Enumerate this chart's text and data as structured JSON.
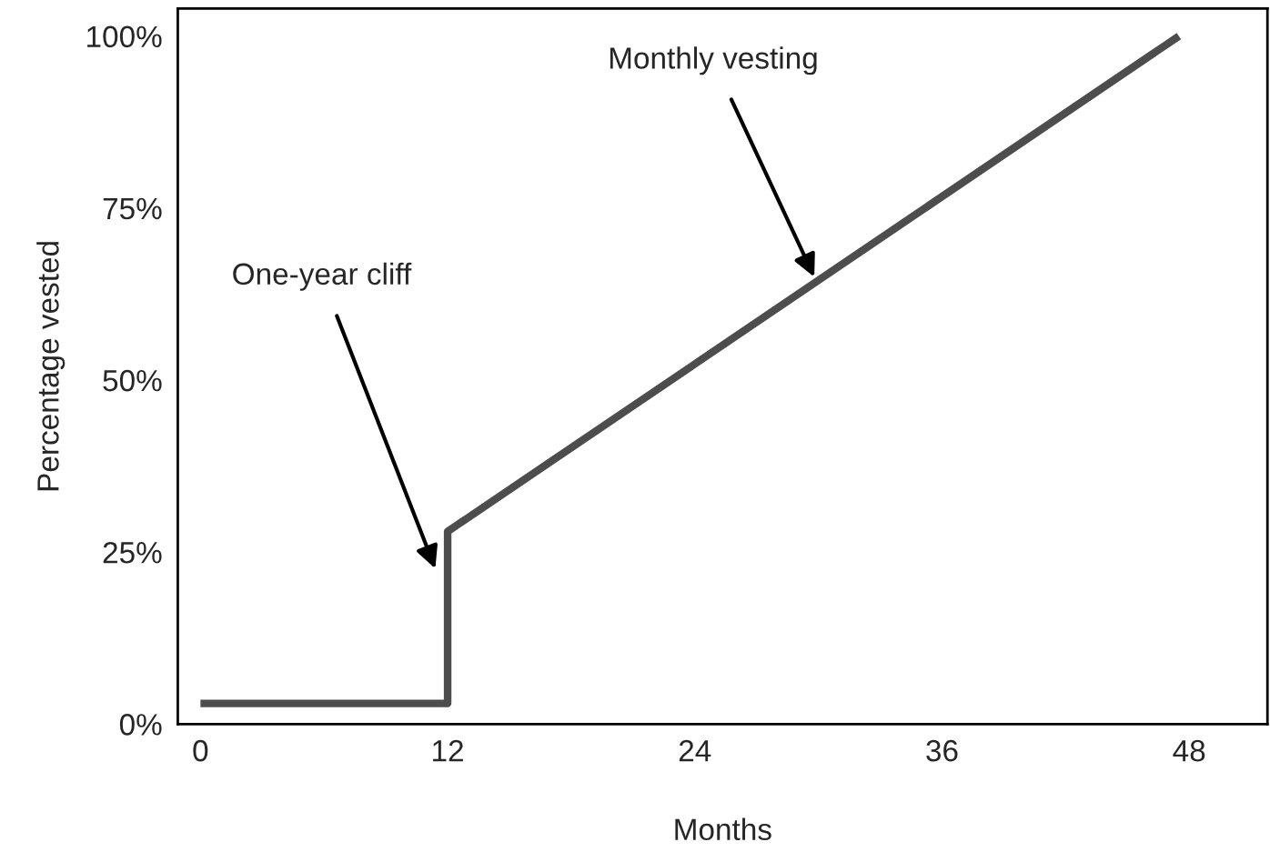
{
  "chart_data": {
    "type": "line",
    "xlabel": "Months",
    "ylabel": "Percentage vested",
    "x": [
      0,
      12,
      12,
      47.5
    ],
    "series": [
      {
        "color": "#4d4d4d",
        "values": [
          3,
          3,
          28,
          100
        ]
      }
    ],
    "xlim": [
      -1.1,
      51.8
    ],
    "ylim": [
      0,
      104
    ],
    "xticks": [
      0,
      12,
      24,
      36,
      48
    ],
    "yticks": [
      {
        "value": 0,
        "label": "0%"
      },
      {
        "value": 25,
        "label": "25%"
      },
      {
        "value": 50,
        "label": "50%"
      },
      {
        "value": 75,
        "label": "75%"
      },
      {
        "value": 100,
        "label": "100%"
      }
    ],
    "grid": false,
    "legend": false,
    "marker": "none",
    "line_style": "solid",
    "annotations": [
      {
        "text": "One-year cliff",
        "x": 11.4,
        "y": 22.6
      },
      {
        "text": "Monthly vesting",
        "x": 29.8,
        "y": 65
      }
    ]
  }
}
